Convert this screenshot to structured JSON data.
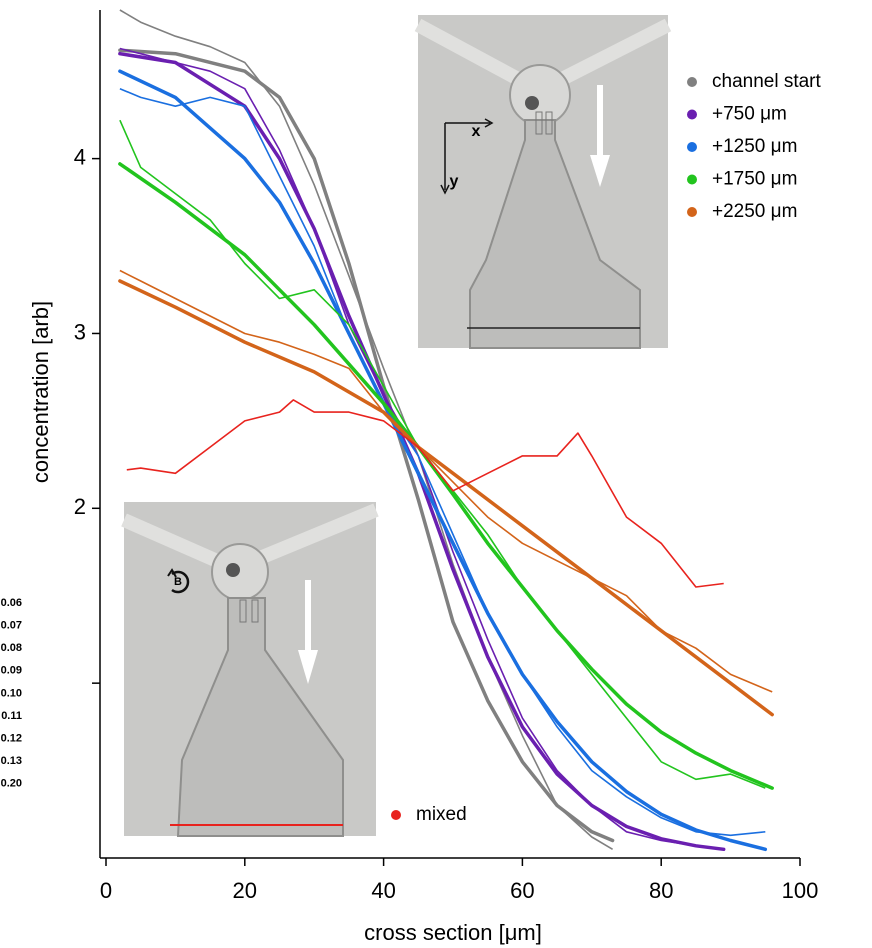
{
  "chart_data": {
    "type": "line",
    "x_label": "cross section [μm]",
    "y_label": "concentration [arb]",
    "xlim": [
      0,
      100
    ],
    "xticks": [
      0,
      20,
      40,
      60,
      80,
      100
    ],
    "ylim": [
      0,
      4.85
    ],
    "yticks": [
      {
        "value": 1,
        "label": null
      },
      2,
      3,
      4
    ],
    "annotations": [
      "x",
      "y",
      "B"
    ],
    "clipped_labels": [
      "0.06",
      "0.07",
      "0.08",
      "0.09",
      "0.10",
      "0.11",
      "0.12",
      "0.13",
      "0.20"
    ],
    "series": [
      {
        "name": "channel start",
        "color": "#808080",
        "x": [
          2,
          5,
          10,
          15,
          20,
          25,
          30,
          35,
          40,
          45,
          50,
          55,
          60,
          65,
          70,
          73
        ],
        "values": [
          4.85,
          4.78,
          4.7,
          4.64,
          4.55,
          4.3,
          3.85,
          3.33,
          2.8,
          2.3,
          1.68,
          1.15,
          0.7,
          0.3,
          0.12,
          0.05
        ],
        "fit_x": [
          2,
          10,
          20,
          25,
          30,
          35,
          40,
          45,
          50,
          55,
          60,
          65,
          70,
          73
        ],
        "fit_values": [
          4.62,
          4.6,
          4.5,
          4.35,
          4.0,
          3.4,
          2.7,
          2.05,
          1.35,
          0.9,
          0.55,
          0.3,
          0.15,
          0.1
        ]
      },
      {
        "name": "+750 μm",
        "color": "#6a1fb0",
        "x": [
          2,
          5,
          10,
          15,
          20,
          25,
          30,
          35,
          40,
          45,
          50,
          55,
          60,
          65,
          70,
          75,
          80,
          85,
          89
        ],
        "values": [
          4.63,
          4.6,
          4.55,
          4.5,
          4.4,
          4.05,
          3.6,
          3.05,
          2.65,
          2.3,
          1.75,
          1.25,
          0.8,
          0.5,
          0.3,
          0.15,
          0.1,
          0.07,
          0.05
        ],
        "fit_x": [
          2,
          10,
          20,
          25,
          30,
          35,
          40,
          45,
          50,
          55,
          60,
          65,
          70,
          75,
          80,
          85,
          89
        ],
        "fit_values": [
          4.6,
          4.55,
          4.3,
          4.0,
          3.6,
          3.1,
          2.65,
          2.2,
          1.65,
          1.15,
          0.75,
          0.48,
          0.3,
          0.18,
          0.11,
          0.07,
          0.05
        ]
      },
      {
        "name": "+1250 μm",
        "color": "#1a6fe0",
        "x": [
          2,
          5,
          10,
          15,
          20,
          25,
          30,
          35,
          40,
          45,
          50,
          55,
          60,
          65,
          70,
          75,
          80,
          85,
          90,
          95
        ],
        "values": [
          4.4,
          4.35,
          4.3,
          4.35,
          4.3,
          3.9,
          3.5,
          3.0,
          2.6,
          2.3,
          1.85,
          1.4,
          1.05,
          0.75,
          0.5,
          0.35,
          0.23,
          0.15,
          0.13,
          0.15
        ],
        "fit_x": [
          2,
          10,
          20,
          25,
          30,
          35,
          40,
          45,
          50,
          55,
          60,
          65,
          70,
          75,
          80,
          85,
          90,
          95
        ],
        "fit_values": [
          4.5,
          4.35,
          4.0,
          3.75,
          3.4,
          3.0,
          2.6,
          2.2,
          1.8,
          1.4,
          1.05,
          0.78,
          0.55,
          0.38,
          0.25,
          0.16,
          0.1,
          0.05
        ]
      },
      {
        "name": "+1750 μm",
        "color": "#22c41e",
        "x": [
          2,
          5,
          10,
          15,
          20,
          25,
          30,
          35,
          40,
          45,
          50,
          55,
          60,
          65,
          70,
          75,
          80,
          85,
          90,
          95
        ],
        "values": [
          4.22,
          3.95,
          3.8,
          3.65,
          3.4,
          3.2,
          3.25,
          3.05,
          2.7,
          2.35,
          2.1,
          1.85,
          1.55,
          1.3,
          1.05,
          0.8,
          0.55,
          0.45,
          0.48,
          0.4
        ],
        "fit_x": [
          2,
          10,
          20,
          30,
          40,
          45,
          50,
          55,
          60,
          65,
          70,
          75,
          80,
          85,
          90,
          96
        ],
        "fit_values": [
          3.97,
          3.75,
          3.45,
          3.05,
          2.6,
          2.35,
          2.08,
          1.8,
          1.55,
          1.3,
          1.08,
          0.88,
          0.72,
          0.6,
          0.5,
          0.4
        ]
      },
      {
        "name": "+2250 μm",
        "color": "#d3641a",
        "x": [
          2,
          5,
          10,
          15,
          20,
          25,
          30,
          35,
          40,
          45,
          50,
          55,
          60,
          65,
          70,
          75,
          80,
          85,
          90,
          96
        ],
        "values": [
          3.36,
          3.3,
          3.2,
          3.1,
          3.0,
          2.95,
          2.88,
          2.8,
          2.55,
          2.35,
          2.15,
          1.95,
          1.8,
          1.7,
          1.6,
          1.5,
          1.3,
          1.2,
          1.05,
          0.95
        ],
        "fit_x": [
          2,
          10,
          20,
          30,
          40,
          45,
          50,
          60,
          70,
          80,
          90,
          96
        ],
        "fit_values": [
          3.3,
          3.15,
          2.95,
          2.78,
          2.55,
          2.35,
          2.2,
          1.9,
          1.6,
          1.3,
          1.0,
          0.82
        ]
      },
      {
        "name": "mixed",
        "color": "#e8231e",
        "x": [
          3,
          5,
          10,
          15,
          20,
          25,
          27,
          30,
          35,
          40,
          45,
          50,
          55,
          60,
          65,
          68,
          70,
          75,
          80,
          85,
          89
        ],
        "values": [
          2.22,
          2.23,
          2.2,
          2.35,
          2.5,
          2.55,
          2.62,
          2.55,
          2.55,
          2.5,
          2.35,
          2.1,
          2.2,
          2.3,
          2.3,
          2.43,
          2.3,
          1.95,
          1.8,
          1.55,
          1.57
        ]
      }
    ]
  }
}
